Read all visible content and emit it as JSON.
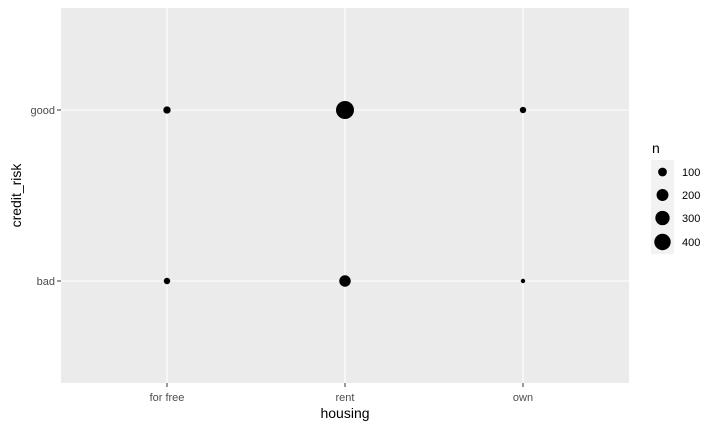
{
  "chart_data": {
    "type": "scatter",
    "title": "",
    "xlabel": "housing",
    "ylabel": "credit_risk",
    "x_categories": [
      "for free",
      "rent",
      "own"
    ],
    "y_categories": [
      "bad",
      "good"
    ],
    "points": [
      {
        "x": "for free",
        "y": "good",
        "n": 64
      },
      {
        "x": "rent",
        "y": "good",
        "n": 486
      },
      {
        "x": "own",
        "y": "good",
        "n": 43
      },
      {
        "x": "for free",
        "y": "bad",
        "n": 44
      },
      {
        "x": "rent",
        "y": "bad",
        "n": 186
      },
      {
        "x": "own",
        "y": "bad",
        "n": 10
      }
    ],
    "legend": {
      "title": "n",
      "position": "right",
      "breaks": [
        100,
        200,
        300,
        400
      ]
    },
    "size_range": [
      10,
      486
    ],
    "grid": true,
    "colors": {
      "panel": "#ebebeb",
      "grid": "#ffffff",
      "point": "#000000",
      "legend_key_bg": "#f2f2f2"
    }
  }
}
